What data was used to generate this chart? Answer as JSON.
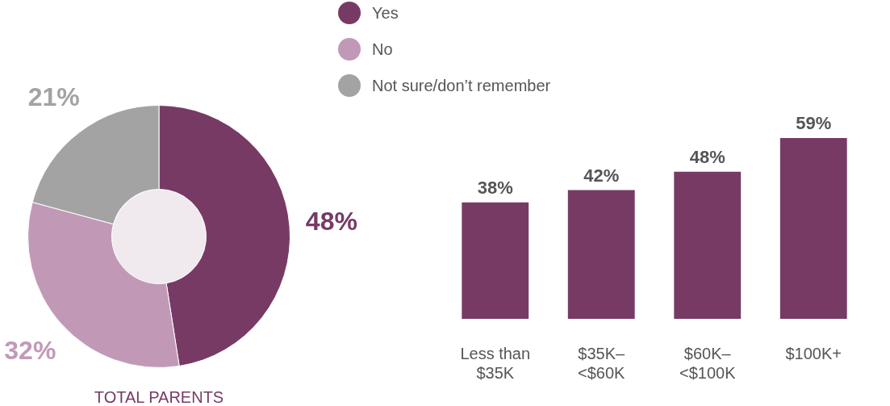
{
  "chart_data": [
    {
      "type": "donut",
      "title": "TOTAL PARENTS",
      "categories": [
        "Yes",
        "No",
        "Not sure/don’t remember"
      ],
      "values": [
        48,
        32,
        21
      ],
      "colors": [
        "#773a65",
        "#c199b7",
        "#a3a3a3"
      ],
      "value_labels": [
        "48%",
        "32%",
        "21%"
      ],
      "legend": "top right"
    },
    {
      "type": "bar",
      "categories": [
        "Less than\n$35K",
        "$35K–\n<$60K",
        "$60K–\n<$100K",
        "$100K+"
      ],
      "values": [
        38,
        42,
        48,
        59
      ],
      "color": "#773a65",
      "value_labels": [
        "38%",
        "42%",
        "48%",
        "59%"
      ]
    }
  ]
}
